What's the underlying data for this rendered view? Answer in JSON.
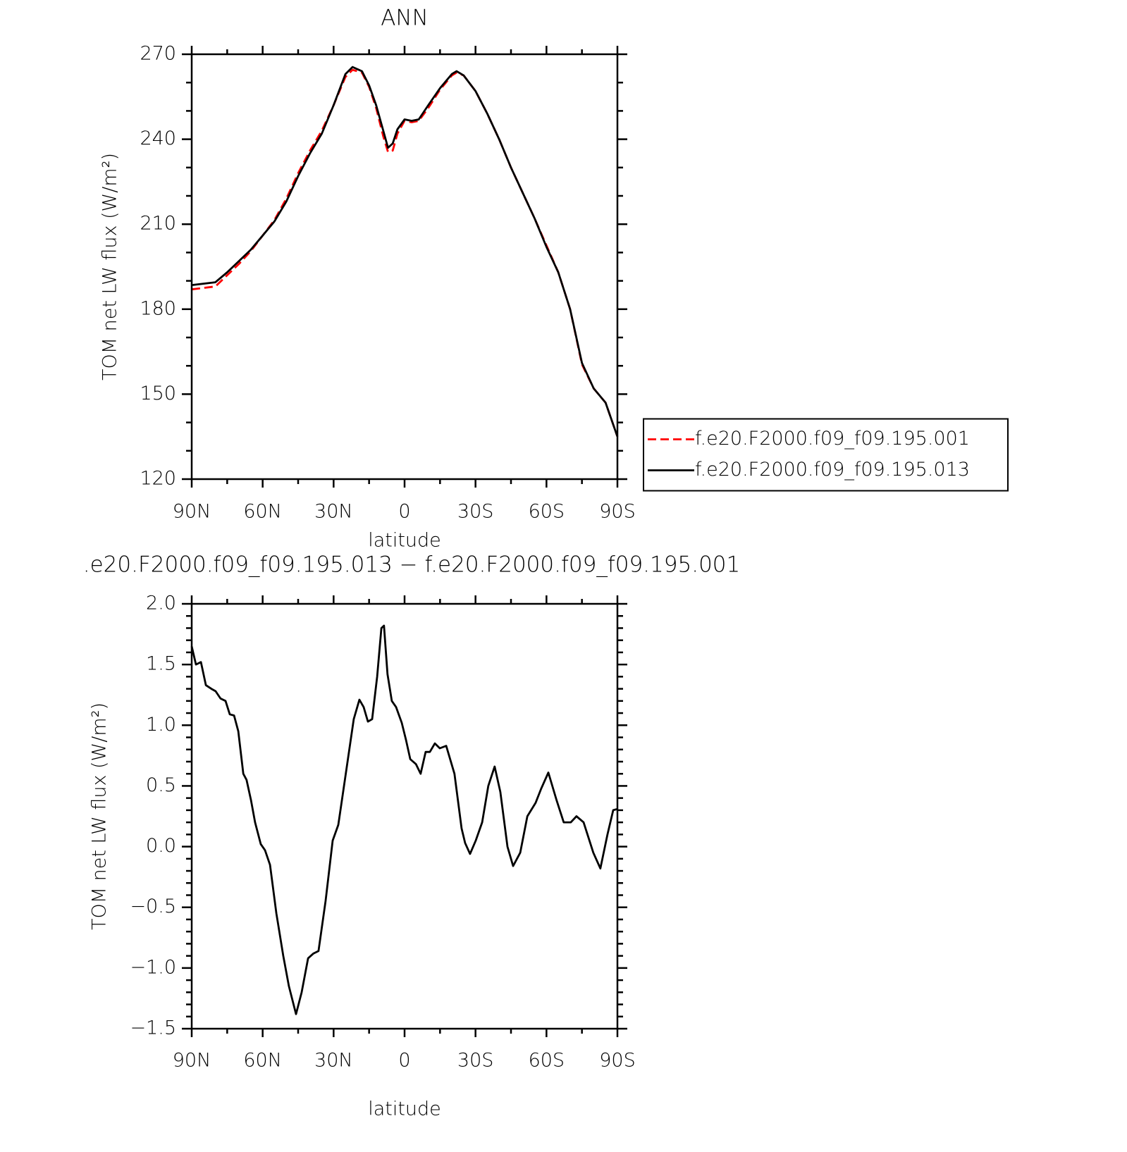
{
  "chart_data": [
    {
      "type": "line",
      "title": "ANN",
      "xlabel": "latitude",
      "ylabel": "TOM net LW flux (W/m²)",
      "x": [
        90,
        85,
        80,
        75,
        70,
        65,
        60,
        55,
        50,
        45,
        40,
        35,
        30,
        25,
        22,
        18,
        15,
        12,
        9,
        7,
        5,
        3,
        0,
        -3,
        -6,
        -10,
        -15,
        -20,
        -22,
        -25,
        -30,
        -35,
        -40,
        -45,
        -50,
        -55,
        -60,
        -65,
        -70,
        -75,
        -80,
        -85,
        -90
      ],
      "series": [
        {
          "name": "f.e20.F2000.f09_f09.195.001",
          "color": "#ff0000",
          "dashed": true,
          "values": [
            187,
            187.5,
            188,
            192,
            196,
            200.5,
            206,
            211.5,
            219,
            228,
            236,
            243,
            252,
            262,
            264.5,
            263.5,
            258.5,
            251,
            241,
            235.5,
            236,
            242,
            246.5,
            246,
            246.5,
            251,
            257.5,
            262.5,
            263.5,
            262.5,
            257,
            249,
            240,
            230,
            221,
            212,
            202.5,
            193,
            180,
            160.5,
            152,
            147,
            135
          ]
        },
        {
          "name": "f.e20.F2000.f09_f09.195.013",
          "color": "#000000",
          "dashed": false,
          "values": [
            188.5,
            189,
            189.5,
            193,
            197,
            201,
            206,
            211,
            218,
            227,
            235,
            242,
            252,
            263,
            265.5,
            264,
            259,
            252,
            243,
            237,
            238.5,
            243.5,
            247,
            246.5,
            247,
            252,
            258,
            263,
            264,
            262.5,
            257,
            249,
            240,
            230,
            221,
            212,
            202,
            193,
            180,
            161,
            152,
            147,
            135
          ]
        }
      ],
      "xlim": [
        90,
        -90
      ],
      "xticks": [
        {
          "value": 90,
          "label": "90N"
        },
        {
          "value": 60,
          "label": "60N"
        },
        {
          "value": 30,
          "label": "30N"
        },
        0,
        {
          "value": -30,
          "label": "30S"
        },
        {
          "value": -60,
          "label": "60S"
        },
        {
          "value": -90,
          "label": "90S"
        }
      ],
      "ylim": [
        120,
        270
      ],
      "yticks": [
        120,
        150,
        180,
        210,
        240,
        270
      ],
      "legend": "right"
    },
    {
      "type": "line",
      "title": ".e20.F2000.f09_f09.195.013 − f.e20.F2000.f09_f09.195.001",
      "xlabel": "latitude",
      "ylabel": "TOM net LW flux (W/m²)",
      "x": [
        90,
        88.2,
        86.1,
        84,
        81.7,
        79.9,
        77.8,
        75.7,
        73.9,
        72.1,
        70.3,
        68.2,
        66.8,
        64.9,
        63.2,
        60.8,
        59,
        56.9,
        54.2,
        51.3,
        48.9,
        45.9,
        43.5,
        40.8,
        38.5,
        36.4,
        33.4,
        30.4,
        28,
        25,
        21.5,
        19.1,
        17.3,
        15.5,
        13.7,
        11.6,
        9.8,
        8.7,
        7.2,
        5.4,
        3.6,
        1.2,
        -0.6,
        -2.4,
        -4.8,
        -6.8,
        -8.9,
        -10.7,
        -12.8,
        -14.9,
        -17.6,
        -21.1,
        -24.1,
        -25.6,
        -27.7,
        -30.1,
        -32.8,
        -35.4,
        -38.1,
        -40.5,
        -43.5,
        -45.9,
        -48.9,
        -51.9,
        -55.4,
        -57.8,
        -60.8,
        -64.3,
        -67.3,
        -70.3,
        -72.7,
        -75.7,
        -79.8,
        -82.8,
        -85.8,
        -88.2,
        -90
      ],
      "series": [
        {
          "color": "#000000",
          "dashed": false,
          "values": [
            1.65,
            1.5,
            1.52,
            1.33,
            1.3,
            1.28,
            1.22,
            1.2,
            1.09,
            1.08,
            0.95,
            0.6,
            0.55,
            0.38,
            0.2,
            0.02,
            -0.03,
            -0.15,
            -0.55,
            -0.9,
            -1.15,
            -1.38,
            -1.2,
            -0.92,
            -0.88,
            -0.86,
            -0.45,
            0.05,
            0.18,
            0.58,
            1.05,
            1.21,
            1.15,
            1.03,
            1.05,
            1.4,
            1.8,
            1.82,
            1.42,
            1.2,
            1.15,
            1.02,
            0.88,
            0.72,
            0.68,
            0.6,
            0.78,
            0.78,
            0.85,
            0.81,
            0.83,
            0.6,
            0.15,
            0.03,
            -0.06,
            0.05,
            0.2,
            0.5,
            0.66,
            0.45,
            0.0,
            -0.16,
            -0.05,
            0.25,
            0.36,
            0.48,
            0.61,
            0.38,
            0.2,
            0.2,
            0.25,
            0.2,
            -0.05,
            -0.18,
            0.1,
            0.3,
            0.31
          ]
        }
      ],
      "xlim": [
        90,
        -90
      ],
      "xticks": [
        {
          "value": 90,
          "label": "90N"
        },
        {
          "value": 60,
          "label": "60N"
        },
        {
          "value": 30,
          "label": "30N"
        },
        0,
        {
          "value": -30,
          "label": "30S"
        },
        {
          "value": -60,
          "label": "60S"
        },
        {
          "value": -90,
          "label": "90S"
        }
      ],
      "ylim": [
        -1.5,
        2.0
      ],
      "yticks": [
        {
          "value": -1.5,
          "label": "−1.5"
        },
        {
          "value": -1.0,
          "label": "−1.0"
        },
        {
          "value": -0.5,
          "label": "−0.5"
        },
        {
          "value": 0,
          "label": "0.0"
        },
        0.5,
        {
          "value": 1.0,
          "label": "1.0"
        },
        1.5,
        {
          "value": 2.0,
          "label": "2.0"
        }
      ]
    }
  ]
}
